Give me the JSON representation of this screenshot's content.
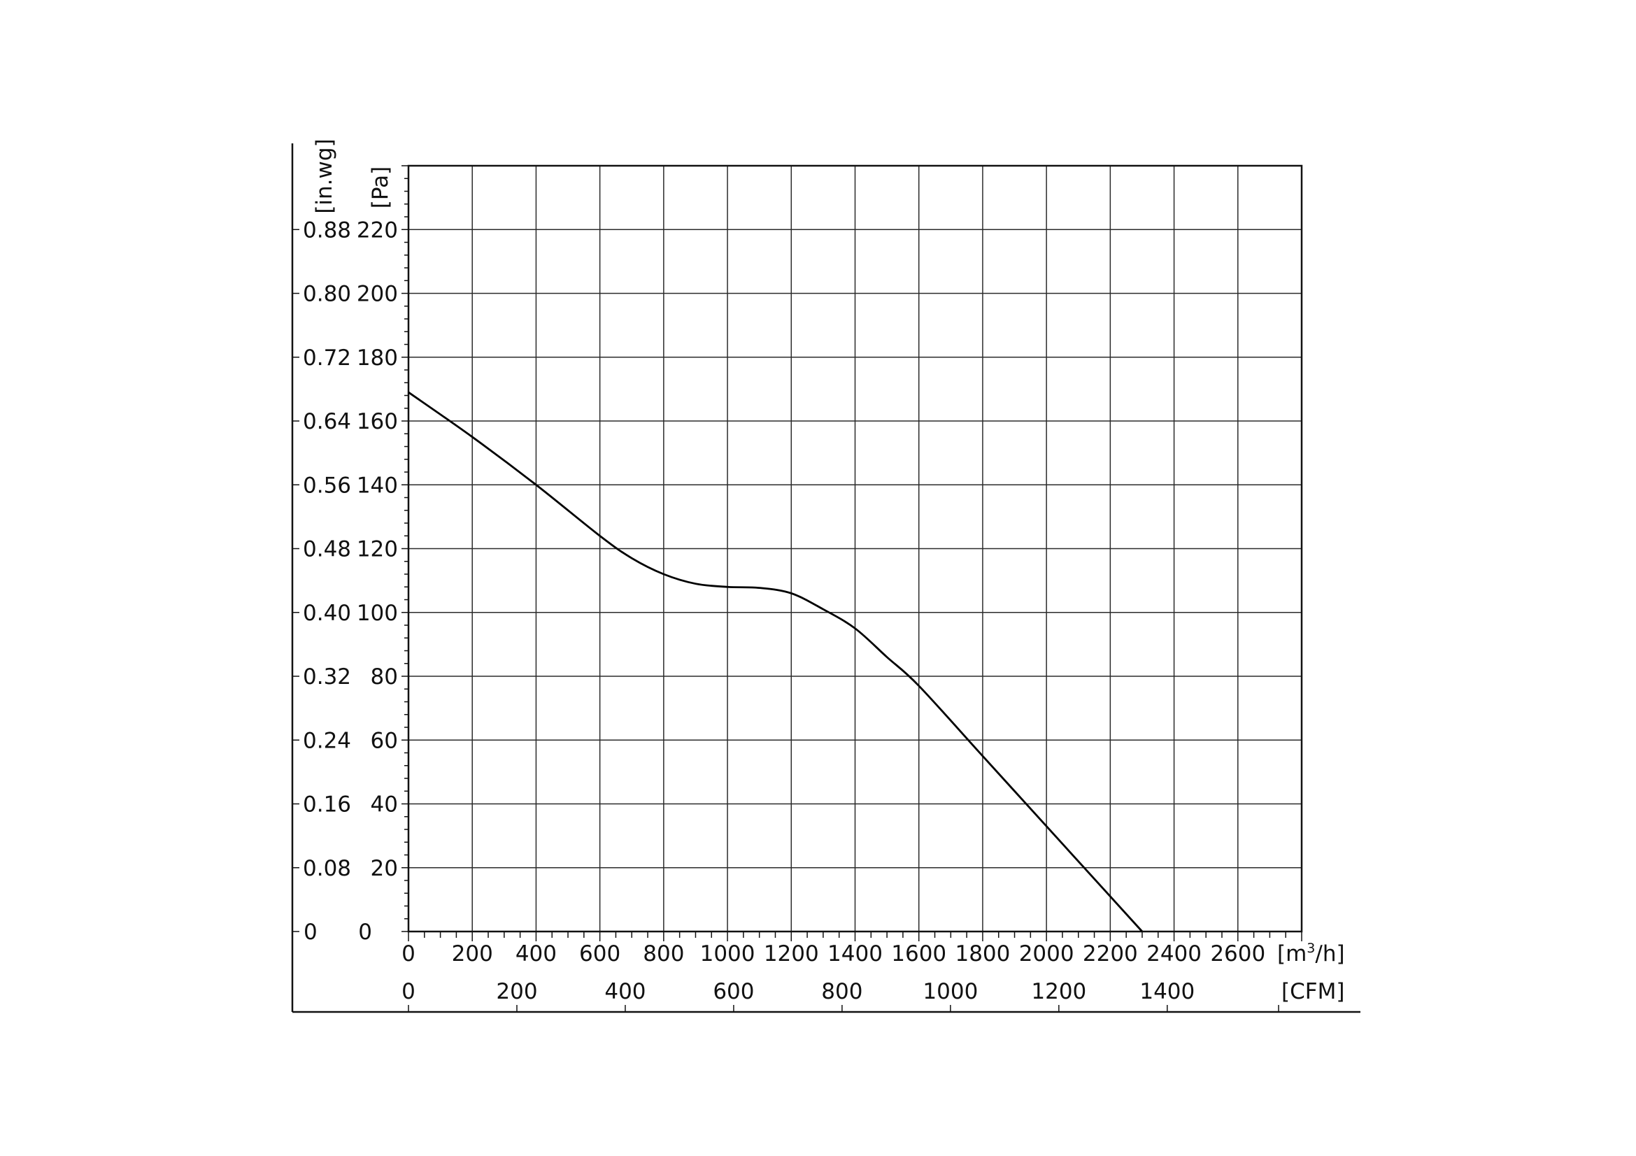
{
  "chart_data": {
    "type": "line",
    "title": "",
    "grid": true,
    "x_axis": {
      "range": [
        0,
        2800
      ],
      "ticks": [
        0,
        200,
        400,
        600,
        800,
        1000,
        1200,
        1400,
        1600,
        1800,
        2000,
        2200,
        2400,
        2600
      ],
      "unit_main": "[m",
      "unit_sup": "3",
      "unit_tail": "/h]"
    },
    "x_axis_secondary": {
      "ticks": [
        0,
        200,
        400,
        600,
        800,
        1000,
        1200,
        1400
      ],
      "unit": "[CFM]"
    },
    "y_axis": {
      "range": [
        0,
        240
      ],
      "ticks": [
        0,
        20,
        40,
        60,
        80,
        100,
        120,
        140,
        160,
        180,
        200,
        220
      ],
      "unit": "[Pa]"
    },
    "y_axis_secondary": {
      "ticks": [
        "0",
        "0.08",
        "0.16",
        "0.24",
        "0.32",
        "0.40",
        "0.48",
        "0.56",
        "0.64",
        "0.72",
        "0.80",
        "0.88"
      ],
      "unit": "[in.wg]"
    },
    "series": [
      {
        "points": [
          [
            0,
            169
          ],
          [
            200,
            155
          ],
          [
            400,
            140
          ],
          [
            600,
            124
          ],
          [
            700,
            117
          ],
          [
            800,
            112
          ],
          [
            900,
            109
          ],
          [
            1000,
            108
          ],
          [
            1100,
            107.7
          ],
          [
            1200,
            106
          ],
          [
            1300,
            101
          ],
          [
            1400,
            95
          ],
          [
            1500,
            86
          ],
          [
            1600,
            77
          ],
          [
            1800,
            55
          ],
          [
            2000,
            33
          ],
          [
            2200,
            11
          ],
          [
            2300,
            0
          ]
        ]
      }
    ]
  }
}
